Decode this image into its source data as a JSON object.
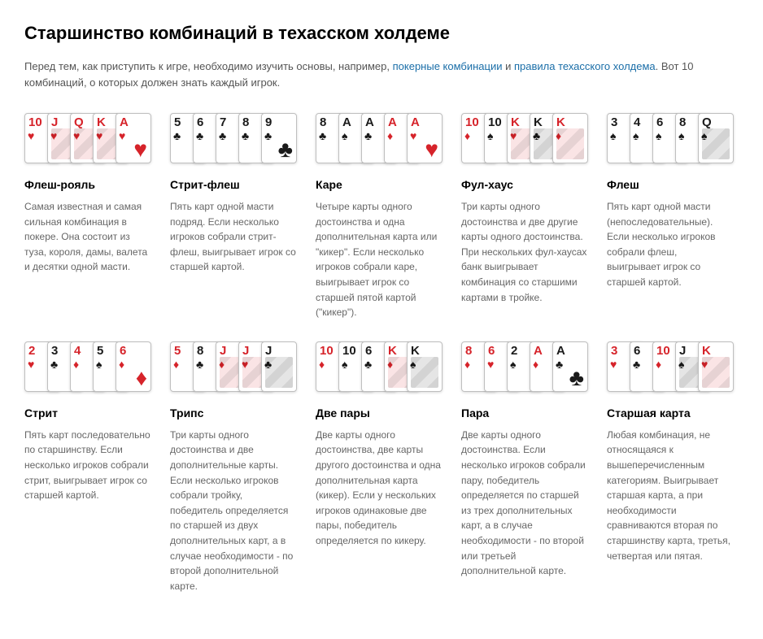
{
  "colors": {
    "red": "#d6232a",
    "black": "#1a1a1a",
    "link": "#1a6ea8",
    "text": "#555555",
    "desc": "#666666",
    "heading": "#000000",
    "card_border": "#bfbfbf",
    "bg": "#ffffff"
  },
  "title": "Старшинство комбинаций в техасском холдеме",
  "intro_pre": "Перед тем, как приступить к игре, необходимо изучить основы, например, ",
  "intro_link1": "покерные комбинации",
  "intro_mid": " и ",
  "intro_link2": "правила техасского холдема",
  "intro_post": ". Вот 10 комбинаций, о которых должен знать каждый игрок.",
  "hands": [
    {
      "name": "Флеш-рояль",
      "desc": "Самая известная и самая сильная комбинация в покере. Она состоит из туза, короля, дамы, валета и десятки одной масти.",
      "cards": [
        {
          "rank": "10",
          "suit": "H"
        },
        {
          "rank": "J",
          "suit": "H",
          "face": true
        },
        {
          "rank": "Q",
          "suit": "H",
          "face": true
        },
        {
          "rank": "K",
          "suit": "H",
          "face": true
        },
        {
          "rank": "A",
          "suit": "H",
          "big": true
        }
      ]
    },
    {
      "name": "Стрит-флеш",
      "desc": "Пять карт одной масти подряд. Если несколько игроков собрали стрит-флеш, выигрывает игрок со старшей картой.",
      "cards": [
        {
          "rank": "5",
          "suit": "C"
        },
        {
          "rank": "6",
          "suit": "C"
        },
        {
          "rank": "7",
          "suit": "C"
        },
        {
          "rank": "8",
          "suit": "C"
        },
        {
          "rank": "9",
          "suit": "C",
          "big": true
        }
      ]
    },
    {
      "name": "Каре",
      "desc": "Четыре карты одного достоинства и одна дополнительная карта или \"кикер\". Если несколько игроков собрали каре, выигрывает игрок со старшей пятой картой (\"кикер\").",
      "cards": [
        {
          "rank": "8",
          "suit": "C"
        },
        {
          "rank": "A",
          "suit": "S"
        },
        {
          "rank": "A",
          "suit": "C"
        },
        {
          "rank": "A",
          "suit": "D"
        },
        {
          "rank": "A",
          "suit": "H",
          "big": true
        }
      ]
    },
    {
      "name": "Фул-хаус",
      "desc": "Три карты одного достоинства и две другие карты одного достоинства. При нескольких фул-хаусах банк выигрывает комбинация со старшими картами в тройке.",
      "cards": [
        {
          "rank": "10",
          "suit": "D"
        },
        {
          "rank": "10",
          "suit": "S"
        },
        {
          "rank": "K",
          "suit": "H",
          "face": true
        },
        {
          "rank": "K",
          "suit": "C",
          "face": true
        },
        {
          "rank": "K",
          "suit": "D",
          "face": true
        }
      ]
    },
    {
      "name": "Флеш",
      "desc": "Пять карт одной масти (непоследовательные). Если несколько игроков собрали флеш, выигрывает игрок со старшей картой.",
      "cards": [
        {
          "rank": "3",
          "suit": "S"
        },
        {
          "rank": "4",
          "suit": "S"
        },
        {
          "rank": "6",
          "suit": "S"
        },
        {
          "rank": "8",
          "suit": "S"
        },
        {
          "rank": "Q",
          "suit": "S",
          "face": true
        }
      ]
    },
    {
      "name": "Стрит",
      "desc": "Пять карт последовательно по старшинству. Если несколько игроков собрали стрит, выигрывает игрок со старшей картой.",
      "cards": [
        {
          "rank": "2",
          "suit": "H"
        },
        {
          "rank": "3",
          "suit": "C"
        },
        {
          "rank": "4",
          "suit": "D"
        },
        {
          "rank": "5",
          "suit": "S"
        },
        {
          "rank": "6",
          "suit": "D",
          "big": true
        }
      ]
    },
    {
      "name": "Трипс",
      "desc": "Три карты одного достоинства и две дополнительные карты. Если несколько игроков собрали тройку, победитель определяется по старшей из двух дополнительных карт, а в случае необходимости - по второй дополнительной карте.",
      "cards": [
        {
          "rank": "5",
          "suit": "D"
        },
        {
          "rank": "8",
          "suit": "C"
        },
        {
          "rank": "J",
          "suit": "D",
          "face": true
        },
        {
          "rank": "J",
          "suit": "H",
          "face": true
        },
        {
          "rank": "J",
          "suit": "C",
          "face": true
        }
      ]
    },
    {
      "name": "Две пары",
      "desc": "Две карты одного достоинства, две карты другого достоинства и одна дополнительная карта (кикер). Если у нескольких игроков одинаковые две пары, победитель определяется по кикеру.",
      "cards": [
        {
          "rank": "10",
          "suit": "D"
        },
        {
          "rank": "10",
          "suit": "S"
        },
        {
          "rank": "6",
          "suit": "C"
        },
        {
          "rank": "K",
          "suit": "D",
          "face": true
        },
        {
          "rank": "K",
          "suit": "S",
          "face": true
        }
      ]
    },
    {
      "name": "Пара",
      "desc": "Две карты одного достоинства. Если несколько игроков собрали пару, победитель определяется по старшей из трех дополнительных карт, а в случае необходимости - по второй или третьей дополнительной карте.",
      "cards": [
        {
          "rank": "8",
          "suit": "D"
        },
        {
          "rank": "6",
          "suit": "H"
        },
        {
          "rank": "2",
          "suit": "S"
        },
        {
          "rank": "A",
          "suit": "D"
        },
        {
          "rank": "A",
          "suit": "C",
          "big": true
        }
      ]
    },
    {
      "name": "Старшая карта",
      "desc": "Любая комбинация, не относящаяся к вышеперечисленным категориям. Выигрывает старшая карта, а при необходимости сравниваются вторая по старшинству карта, третья, четвертая или пятая.",
      "cards": [
        {
          "rank": "3",
          "suit": "H"
        },
        {
          "rank": "6",
          "suit": "C"
        },
        {
          "rank": "10",
          "suit": "D"
        },
        {
          "rank": "J",
          "suit": "S",
          "face": true
        },
        {
          "rank": "K",
          "suit": "H",
          "face": true
        }
      ]
    }
  ]
}
